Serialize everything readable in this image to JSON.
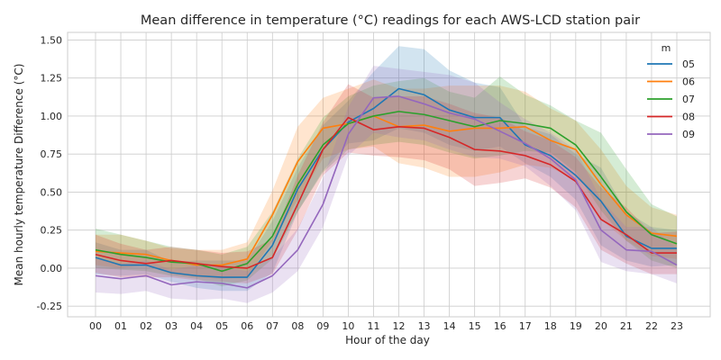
{
  "chart_data": {
    "type": "line",
    "title": "Mean difference in temperature (°C) readings for each AWS-LCD station pair",
    "xlabel": "Hour of the day",
    "ylabel": "Mean hourly temperature Difference (°C)",
    "categories": [
      "00",
      "01",
      "02",
      "03",
      "04",
      "05",
      "06",
      "07",
      "08",
      "09",
      "10",
      "11",
      "12",
      "13",
      "14",
      "15",
      "16",
      "17",
      "18",
      "19",
      "20",
      "21",
      "22",
      "23"
    ],
    "ylim": [
      -0.32,
      1.55
    ],
    "yticks": [
      "-0.25",
      "0.00",
      "0.25",
      "0.50",
      "0.75",
      "1.00",
      "1.25",
      "1.50"
    ],
    "grid": true,
    "legend": {
      "title": "m",
      "position": "top-right"
    },
    "series": [
      {
        "name": "05",
        "color": "#1f77b4",
        "values": [
          0.07,
          0.02,
          0.02,
          -0.03,
          -0.05,
          -0.06,
          -0.06,
          0.15,
          0.52,
          0.78,
          0.96,
          1.05,
          1.18,
          1.14,
          1.04,
          0.99,
          0.99,
          0.81,
          0.74,
          0.61,
          0.44,
          0.21,
          0.13,
          0.13
        ],
        "lower": [
          -0.04,
          -0.05,
          -0.04,
          -0.09,
          -0.13,
          -0.15,
          -0.15,
          -0.03,
          0.37,
          0.64,
          0.82,
          0.84,
          0.92,
          0.89,
          0.81,
          0.77,
          0.8,
          0.69,
          0.6,
          0.45,
          0.15,
          0.05,
          0.01,
          0.02
        ],
        "upper": [
          0.17,
          0.12,
          0.12,
          0.04,
          0.05,
          0.05,
          0.05,
          0.31,
          0.66,
          0.94,
          1.1,
          1.29,
          1.46,
          1.44,
          1.3,
          1.22,
          1.19,
          0.93,
          0.88,
          0.75,
          0.66,
          0.37,
          0.27,
          0.25
        ]
      },
      {
        "name": "06",
        "color": "#ff7f0e",
        "values": [
          0.11,
          0.1,
          0.09,
          0.05,
          0.02,
          0.02,
          0.06,
          0.35,
          0.7,
          0.92,
          0.95,
          1.0,
          0.93,
          0.94,
          0.9,
          0.92,
          0.92,
          0.93,
          0.84,
          0.78,
          0.55,
          0.35,
          0.23,
          0.21
        ],
        "lower": [
          0.02,
          0.0,
          0.02,
          -0.04,
          -0.06,
          -0.07,
          -0.06,
          0.18,
          0.45,
          0.72,
          0.78,
          0.8,
          0.69,
          0.66,
          0.6,
          0.6,
          0.63,
          0.68,
          0.66,
          0.58,
          0.32,
          0.18,
          0.08,
          0.06
        ],
        "upper": [
          0.22,
          0.22,
          0.18,
          0.13,
          0.12,
          0.12,
          0.17,
          0.51,
          0.93,
          1.12,
          1.18,
          1.24,
          1.18,
          1.18,
          1.2,
          1.2,
          1.2,
          1.16,
          1.05,
          0.97,
          0.78,
          0.54,
          0.4,
          0.35
        ]
      },
      {
        "name": "07",
        "color": "#2ca02c",
        "values": [
          0.12,
          0.09,
          0.07,
          0.04,
          0.03,
          -0.02,
          0.03,
          0.21,
          0.55,
          0.81,
          0.95,
          1.0,
          1.03,
          1.01,
          0.97,
          0.93,
          0.97,
          0.95,
          0.92,
          0.81,
          0.6,
          0.37,
          0.22,
          0.16
        ],
        "lower": [
          0.0,
          -0.01,
          -0.02,
          -0.05,
          -0.07,
          -0.12,
          -0.08,
          0.06,
          0.37,
          0.63,
          0.78,
          0.81,
          0.83,
          0.81,
          0.76,
          0.72,
          0.74,
          0.77,
          0.76,
          0.63,
          0.38,
          0.18,
          0.05,
          0.0
        ],
        "upper": [
          0.26,
          0.22,
          0.18,
          0.14,
          0.12,
          0.09,
          0.14,
          0.37,
          0.72,
          0.99,
          1.13,
          1.2,
          1.23,
          1.25,
          1.16,
          1.12,
          1.26,
          1.14,
          1.07,
          0.97,
          0.89,
          0.65,
          0.42,
          0.34
        ]
      },
      {
        "name": "08",
        "color": "#d62728",
        "values": [
          0.09,
          0.05,
          0.03,
          0.05,
          0.03,
          0.01,
          0.0,
          0.07,
          0.42,
          0.78,
          0.99,
          0.91,
          0.93,
          0.92,
          0.86,
          0.78,
          0.77,
          0.74,
          0.68,
          0.57,
          0.32,
          0.22,
          0.1,
          0.1
        ],
        "lower": [
          -0.03,
          -0.06,
          -0.06,
          -0.06,
          -0.08,
          -0.09,
          -0.1,
          -0.04,
          0.25,
          0.61,
          0.76,
          0.74,
          0.73,
          0.71,
          0.65,
          0.54,
          0.56,
          0.59,
          0.53,
          0.4,
          0.12,
          0.03,
          -0.04,
          -0.04
        ],
        "upper": [
          0.22,
          0.16,
          0.12,
          0.14,
          0.12,
          0.1,
          0.11,
          0.19,
          0.61,
          0.96,
          1.21,
          1.12,
          1.13,
          1.13,
          1.08,
          1.02,
          0.99,
          0.9,
          0.84,
          0.73,
          0.53,
          0.4,
          0.23,
          0.24
        ]
      },
      {
        "name": "09",
        "color": "#9467bd",
        "values": [
          -0.05,
          -0.07,
          -0.05,
          -0.11,
          -0.09,
          -0.1,
          -0.13,
          -0.05,
          0.12,
          0.42,
          0.88,
          1.12,
          1.13,
          1.08,
          1.02,
          0.98,
          0.9,
          0.82,
          0.72,
          0.58,
          0.25,
          0.12,
          0.11,
          0.02
        ],
        "lower": [
          -0.16,
          -0.17,
          -0.15,
          -0.2,
          -0.21,
          -0.2,
          -0.23,
          -0.16,
          -0.02,
          0.27,
          0.74,
          0.89,
          0.86,
          0.84,
          0.78,
          0.73,
          0.72,
          0.67,
          0.54,
          0.38,
          0.04,
          -0.02,
          -0.04,
          -0.1
        ],
        "upper": [
          0.06,
          0.03,
          0.05,
          -0.01,
          0.02,
          0.01,
          -0.02,
          0.07,
          0.26,
          0.59,
          1.06,
          1.33,
          1.31,
          1.29,
          1.27,
          1.22,
          1.09,
          0.98,
          0.89,
          0.78,
          0.45,
          0.27,
          0.27,
          0.13
        ]
      }
    ]
  }
}
